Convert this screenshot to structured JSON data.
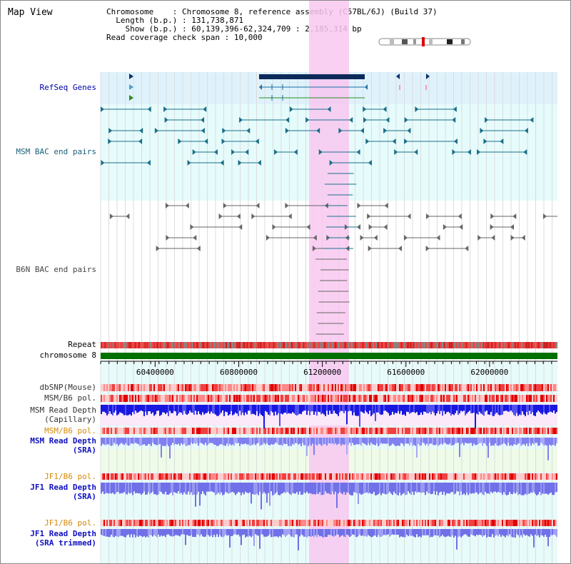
{
  "title": "Map View",
  "info": {
    "chromosome_key": "Chromosome",
    "chromosome_val": "Chromosome 8, reference assembly (C57BL/6J) (Build 37)",
    "length_key": "Length (b.p.)",
    "length_val": "131,738,871",
    "show_key": "Show (b.p.)",
    "show_val": "60,139,396-62,324,709 : 2,185,314 bp",
    "coverage_key": "Read coverage check span",
    "coverage_val": "10,000"
  },
  "labels": {
    "refseq": "RefSeq Genes",
    "msm_bac": "MSM BAC end pairs",
    "b6n_bac": "B6N BAC end pairs",
    "repeat": "Repeat",
    "chromosome": "chromosome 8",
    "dbsnp": "dbSNP(Mouse)",
    "msm_b6_pol_1": "MSM/B6 pol.",
    "msm_depth_cap_1": "MSM Read Depth",
    "msm_depth_cap_2": "(Capillary)",
    "msm_b6_pol_2": "MSM/B6 pol.",
    "msm_depth_sra_1": "MSM Read Depth",
    "msm_depth_sra_2": "(SRA)",
    "jf1_b6_pol_1": "JF1/B6 pol.",
    "jf1_depth_sra_1": "JF1 Read Depth",
    "jf1_depth_sra_2": "(SRA)",
    "jf1_b6_pol_2": "JF1/B6 pol.",
    "jf1_depth_trim_1": "JF1 Read Depth",
    "jf1_depth_trim_2": "(SRA trimmed)"
  },
  "axis": {
    "ticks": [
      {
        "label": "60400000",
        "value": 60400000
      },
      {
        "label": "60800000",
        "value": 60800000
      },
      {
        "label": "61200000",
        "value": 61200000
      },
      {
        "label": "61600000",
        "value": 61600000
      },
      {
        "label": "62000000",
        "value": 62000000
      }
    ]
  },
  "colors": {
    "label_default": "#000000",
    "label_refseq": "#0000aa",
    "label_bac": "#1a5f7a",
    "label_pol": "#d4890a",
    "label_depth": "#1010c0",
    "highlight": "#f8c8f0",
    "refseq_band": "#dff2fb",
    "msm_band": "#e6fbfb",
    "chromosome_bar": "#007000"
  }
}
